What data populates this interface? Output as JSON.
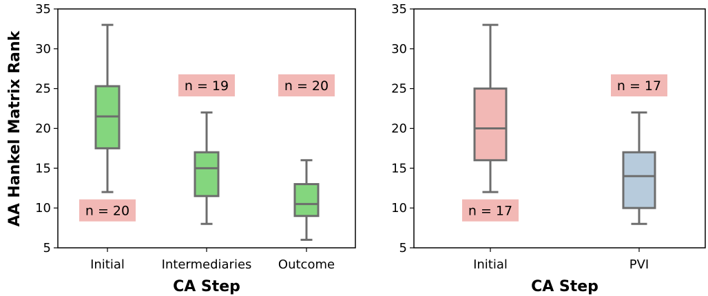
{
  "chart_data": [
    {
      "type": "box",
      "ylabel": "AA Hankel Matrix Rank",
      "xlabel": "CA Step",
      "ylim": [
        5,
        35
      ],
      "yticks": [
        5,
        10,
        15,
        20,
        25,
        30,
        35
      ],
      "categories": [
        "Initial",
        "Intermediaries",
        "Outcome"
      ],
      "boxes": [
        {
          "category": "Initial",
          "whisker_low": 12,
          "q1": 17.5,
          "median": 21.5,
          "q3": 25.3,
          "whisker_high": 33,
          "color": "#84d67e",
          "n_label": "n = 20",
          "n_label_y": 9.7
        },
        {
          "category": "Intermediaries",
          "whisker_low": 8,
          "q1": 11.5,
          "median": 15,
          "q3": 17,
          "whisker_high": 22,
          "color": "#84d67e",
          "n_label": "n = 19",
          "n_label_y": 25.4
        },
        {
          "category": "Outcome",
          "whisker_low": 6,
          "q1": 9,
          "median": 10.5,
          "q3": 13,
          "whisker_high": 16,
          "color": "#84d67e",
          "n_label": "n = 20",
          "n_label_y": 25.4
        }
      ],
      "label_bg": "#f2b8b5",
      "line_color": "#6d6d6d",
      "grid": false
    },
    {
      "type": "box",
      "ylabel": "",
      "xlabel": "CA Step",
      "ylim": [
        5,
        35
      ],
      "yticks": [
        5,
        10,
        15,
        20,
        25,
        30,
        35
      ],
      "categories": [
        "Initial",
        "PVI"
      ],
      "boxes": [
        {
          "category": "Initial",
          "whisker_low": 12,
          "q1": 16,
          "median": 20,
          "q3": 25,
          "whisker_high": 33,
          "color": "#f2b8b5",
          "n_label": "n = 17",
          "n_label_y": 9.7
        },
        {
          "category": "PVI",
          "whisker_low": 8,
          "q1": 10,
          "median": 14,
          "q3": 17,
          "whisker_high": 22,
          "color": "#b7cbdc",
          "n_label": "n = 17",
          "n_label_y": 25.4
        }
      ],
      "label_bg": "#f2b8b5",
      "line_color": "#6d6d6d",
      "grid": false
    }
  ]
}
